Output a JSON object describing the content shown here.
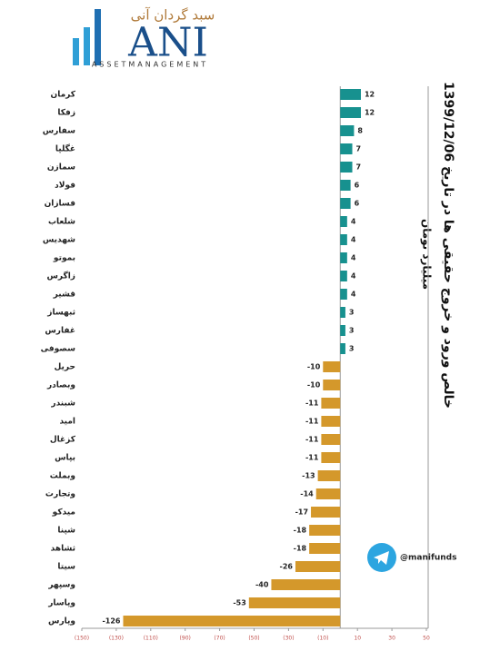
{
  "logo": {
    "persian": "سبد گردان آنی",
    "mark": "ANI",
    "tagline": "ASSETMANAGEMENT"
  },
  "telegram": "@manifunds",
  "chart_data": {
    "type": "barh",
    "title": "خالص ورود و خروج حقیقی ها در تاریخ 1399/12/06",
    "subtitle": "میلیارد تومان",
    "categories": [
      "کرمان",
      "زفکا",
      "سفارس",
      "غگلپا",
      "سمازن",
      "فولاد",
      "فسازان",
      "شلعاب",
      "شهدیس",
      "بموتو",
      "زاگرس",
      "قشیر",
      "ثبهساز",
      "غفارس",
      "سصوفی",
      "حریل",
      "وبصادر",
      "شبندر",
      "امید",
      "کزغال",
      "بپاس",
      "وبملت",
      "وتجارت",
      "میدکو",
      "شپنا",
      "ثشاهد",
      "سیتا",
      "وسپهر",
      "وپاسار",
      "وپارس"
    ],
    "values": [
      12,
      12,
      8,
      7,
      7,
      6,
      6,
      4,
      4,
      4,
      4,
      4,
      3,
      3,
      3,
      -10,
      -10,
      -11,
      -11,
      -11,
      -11,
      -13,
      -14,
      -17,
      -18,
      -18,
      -26,
      -40,
      -53,
      -126
    ],
    "color_positive": "#17918f",
    "color_negative": "#d4982b",
    "xlim": [
      -150,
      50
    ],
    "xticks": [
      {
        "value": -150,
        "label": "(150)"
      },
      {
        "value": -130,
        "label": "(130)"
      },
      {
        "value": -110,
        "label": "(110)"
      },
      {
        "value": -90,
        "label": "(90)"
      },
      {
        "value": -70,
        "label": "(70)"
      },
      {
        "value": -50,
        "label": "(50)"
      },
      {
        "value": -30,
        "label": "(30)"
      },
      {
        "value": -10,
        "label": "(10)"
      },
      10,
      30,
      50
    ]
  }
}
